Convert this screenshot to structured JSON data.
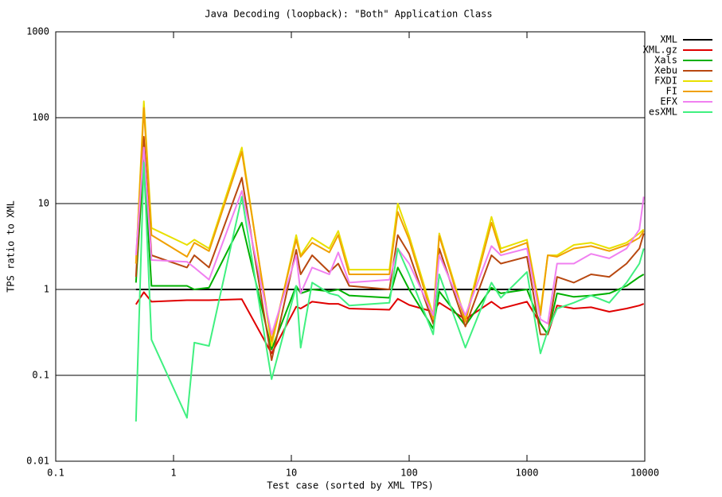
{
  "chart_data": {
    "type": "line",
    "title": "Java Decoding (loopback): \"Both\" Application Class",
    "x_label": "Test case (sorted by XML TPS)",
    "y_label": "TPS ratio to XML",
    "log_x": true,
    "log_y": true,
    "grid": "y",
    "legend": "top-right",
    "xlim": [
      0.1,
      10000
    ],
    "xticks": [
      0.1,
      1,
      10,
      100,
      1000,
      10000
    ],
    "ylim": [
      0.01,
      1000
    ],
    "yticks": [
      0.01,
      0.1,
      1,
      10,
      100,
      1000
    ],
    "x": [
      0.48,
      0.56,
      0.65,
      1.3,
      1.5,
      2,
      3.8,
      6.8,
      11,
      12,
      15,
      21,
      25,
      31,
      68,
      80,
      100,
      160,
      180,
      300,
      500,
      600,
      1000,
      1300,
      1500,
      1800,
      2500,
      3500,
      5000,
      7000,
      9000,
      9800
    ],
    "series": [
      {
        "name": "XML",
        "color": "#000000",
        "values": [
          1,
          1,
          1,
          1,
          1,
          1,
          1,
          1,
          1,
          1,
          1,
          1,
          1,
          1,
          1,
          1,
          1,
          1,
          1,
          1,
          1,
          1,
          1,
          1,
          1,
          1,
          1,
          1,
          1,
          1,
          1,
          1
        ]
      },
      {
        "name": "XML.gz",
        "color": "#e00000",
        "values": [
          0.67,
          0.93,
          0.72,
          0.75,
          0.75,
          0.75,
          0.77,
          0.18,
          0.63,
          0.6,
          0.72,
          0.68,
          0.68,
          0.6,
          0.58,
          0.78,
          0.66,
          0.55,
          0.7,
          0.45,
          0.72,
          0.6,
          0.72,
          0.4,
          0.3,
          0.65,
          0.6,
          0.62,
          0.55,
          0.6,
          0.65,
          0.68
        ]
      },
      {
        "name": "Xals",
        "color": "#00b000",
        "values": [
          1.2,
          35,
          1.1,
          1.1,
          1.0,
          1.05,
          6,
          0.2,
          1.1,
          0.9,
          1.0,
          0.95,
          1.0,
          0.85,
          0.8,
          1.8,
          1.0,
          0.35,
          0.95,
          0.38,
          1.05,
          0.9,
          1.0,
          0.4,
          0.3,
          0.9,
          0.82,
          0.85,
          0.9,
          1.1,
          1.4,
          1.5
        ]
      },
      {
        "name": "Xebu",
        "color": "#b84810",
        "values": [
          1.4,
          60,
          2.5,
          1.8,
          2.5,
          1.8,
          20,
          0.15,
          2.9,
          1.5,
          2.5,
          1.6,
          2.0,
          1.1,
          1.0,
          4.3,
          2.6,
          0.4,
          3.0,
          0.37,
          2.5,
          2.0,
          2.4,
          0.3,
          0.3,
          1.4,
          1.2,
          1.5,
          1.4,
          2.0,
          3.0,
          4.5
        ]
      },
      {
        "name": "FXDI",
        "color": "#e8e000",
        "values": [
          2,
          155,
          5.2,
          3.3,
          3.8,
          3.0,
          45,
          0.22,
          4.3,
          2.5,
          4.0,
          3.0,
          4.8,
          1.7,
          1.7,
          10,
          4.2,
          0.5,
          4.5,
          0.45,
          7.0,
          3.0,
          3.8,
          0.55,
          2.5,
          2.5,
          3.3,
          3.5,
          3.0,
          3.5,
          4.5,
          5.0
        ]
      },
      {
        "name": "FI",
        "color": "#f0a000",
        "values": [
          2,
          130,
          4.3,
          2.4,
          3.5,
          2.8,
          40,
          0.25,
          3.8,
          2.4,
          3.5,
          2.7,
          4.3,
          1.5,
          1.5,
          8.0,
          3.8,
          0.45,
          4.2,
          0.42,
          6.0,
          2.7,
          3.5,
          0.5,
          2.5,
          2.4,
          3.0,
          3.2,
          2.8,
          3.3,
          4.0,
          4.8
        ]
      },
      {
        "name": "EFX",
        "color": "#f080f0",
        "values": [
          2.5,
          45,
          2.2,
          2.1,
          1.8,
          1.3,
          14,
          0.3,
          2.5,
          0.9,
          1.8,
          1.5,
          2.7,
          1.2,
          1.3,
          3.0,
          2.0,
          0.5,
          2.5,
          0.5,
          3.2,
          2.5,
          3.0,
          0.45,
          0.4,
          2.0,
          2.0,
          2.6,
          2.3,
          3.0,
          5.0,
          12
        ]
      },
      {
        "name": "esXML",
        "color": "#40f080",
        "values": [
          0.029,
          30,
          0.26,
          0.032,
          0.24,
          0.22,
          12,
          0.09,
          1.1,
          0.21,
          1.2,
          0.9,
          0.85,
          0.65,
          0.7,
          3.0,
          1.5,
          0.3,
          1.5,
          0.21,
          1.2,
          0.8,
          1.6,
          0.18,
          0.33,
          0.6,
          0.7,
          0.85,
          0.7,
          1.2,
          2.0,
          3.0
        ]
      }
    ]
  }
}
